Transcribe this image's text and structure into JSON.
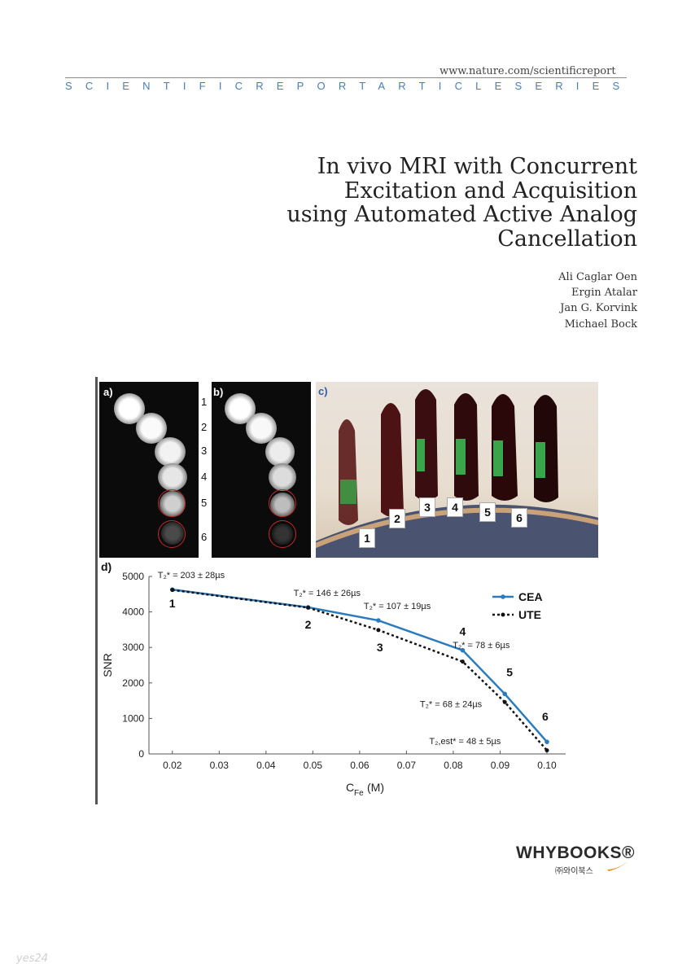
{
  "header": {
    "url": "www.nature.com/scientificreport",
    "series": "SCIENTIFICREPORTARTICLESERIES"
  },
  "title_lines": [
    "In vivo MRI with Concurrent",
    "Excitation and Acquisition",
    "using Automated Active Analog",
    "Cancellation"
  ],
  "authors": [
    "Ali Caglar Oen",
    "Ergin Atalar",
    "Jan G. Korvink",
    "Michael Bock"
  ],
  "figure": {
    "panel_labels": [
      "a)",
      "b)",
      "c)",
      "d)"
    ],
    "sample_numbers": [
      "1",
      "2",
      "3",
      "4",
      "5",
      "6"
    ],
    "colors": {
      "ring": "#c62a2a",
      "cea": "#2b7bbd",
      "ute": "#111111"
    }
  },
  "chart_data": {
    "type": "line",
    "x": [
      0.02,
      0.049,
      0.064,
      0.082,
      0.091,
      0.1
    ],
    "series": [
      {
        "name": "CEA",
        "values": [
          4630,
          4130,
          3760,
          2920,
          1690,
          340
        ]
      },
      {
        "name": "UTE",
        "values": [
          4620,
          4120,
          3490,
          2600,
          1460,
          100
        ]
      }
    ],
    "point_labels": [
      "1",
      "2",
      "3",
      "4",
      "5",
      "6"
    ],
    "annotations": [
      {
        "text": "T₂* = 203 ± 28µs",
        "x": 0.02,
        "y": 4950
      },
      {
        "text": "T₂* = 146 ± 26µs",
        "x": 0.049,
        "y": 4450
      },
      {
        "text": "T₂* = 107 ± 19µs",
        "x": 0.064,
        "y": 4080
      },
      {
        "text": "T₂* = 78 ± 6µs",
        "x": 0.083,
        "y": 2980
      },
      {
        "text": "T₂* = 68 ± 24µs",
        "x": 0.076,
        "y": 1320
      },
      {
        "text": "T₂,est* = 48 ± 5µs",
        "x": 0.078,
        "y": 270
      }
    ],
    "xlabel": "C",
    "xlabel_sub": "Fe",
    "xlabel_unit": "(M)",
    "ylabel": "SNR",
    "xlim": [
      0.015,
      0.104
    ],
    "ylim": [
      0,
      5000
    ],
    "xticks": [
      "0.02",
      "0.03",
      "0.04",
      "0.05",
      "0.06",
      "0.07",
      "0.08",
      "0.09",
      "0.10"
    ],
    "yticks": [
      "0",
      "1000",
      "2000",
      "3000",
      "4000",
      "5000"
    ],
    "legend": "top-right",
    "grid": false
  },
  "logo": {
    "name": "WHYBOOKS",
    "mark": "®",
    "subtitle": "㈜와이북스"
  },
  "watermark": "yes24"
}
